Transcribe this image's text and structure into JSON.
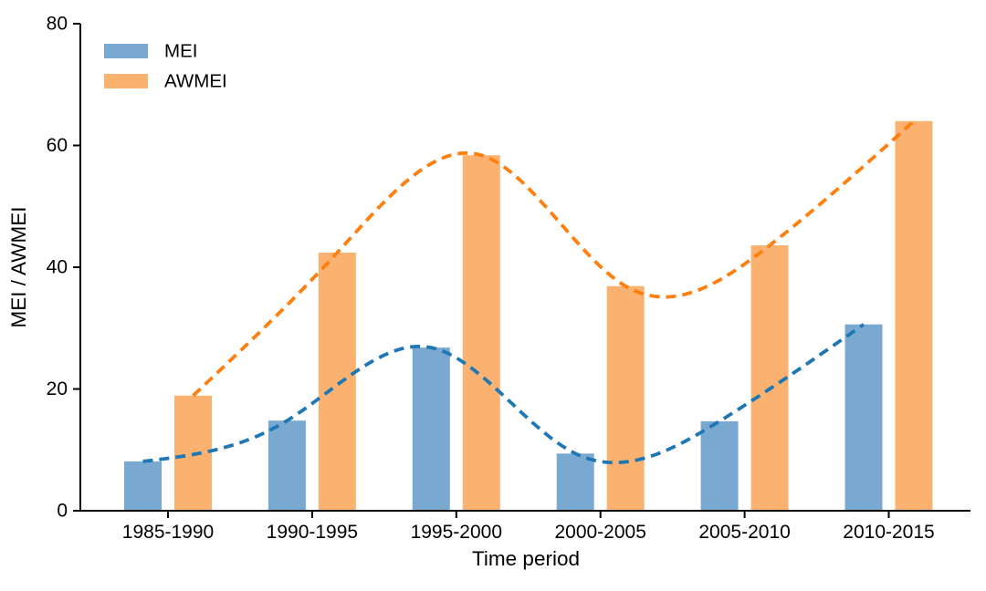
{
  "chart_data": {
    "type": "bar",
    "title": "",
    "xlabel": "Time period",
    "ylabel": "MEI / AWMEI",
    "categories": [
      "1985-1990",
      "1990-1995",
      "1995-2000",
      "2000-2005",
      "2005-2010",
      "2010-2015"
    ],
    "series": [
      {
        "name": "MEI",
        "values": [
          8.1,
          14.8,
          26.8,
          9.4,
          14.7,
          30.6
        ],
        "bar_color": "#79A9D1",
        "line_color": "#1F77B4",
        "trend_line": "dashed-cubic-spline"
      },
      {
        "name": "AWMEI",
        "values": [
          18.9,
          42.4,
          58.4,
          36.9,
          43.6,
          64.0
        ],
        "bar_color": "#FBB271",
        "line_color": "#FF7F0E",
        "trend_line": "dashed-cubic-spline"
      }
    ],
    "ylim": [
      0,
      80
    ],
    "yticks": [
      0,
      20,
      40,
      60,
      80
    ],
    "grid": false,
    "legend_position": "upper-left",
    "axis_color": "#000000",
    "background_color": "#ffffff"
  }
}
